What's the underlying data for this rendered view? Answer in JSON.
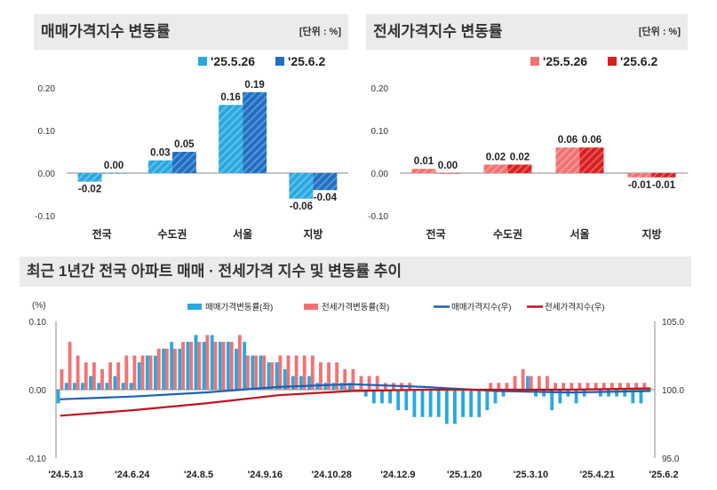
{
  "panels": {
    "sale": {
      "title": "매매가격지수 변동률",
      "unit": "[단위 : %]"
    },
    "jeonse": {
      "title": "전세가격지수 변동률",
      "unit": "[단위 : %]"
    },
    "trend": {
      "title": "최근 1년간 전국 아파트 매매 · 전세가격 지수 및 변동률 추이"
    }
  },
  "colors": {
    "sale_prev": "#29a8e0",
    "sale_curr": "#1f6fc2",
    "jeonse_prev": "#f27272",
    "jeonse_curr": "#d91f1f",
    "sale_index_line": "#1e5fb4",
    "jeonse_index_line": "#c0121c"
  },
  "chart_data": [
    {
      "type": "bar",
      "categories": [
        "전국",
        "수도권",
        "서울",
        "지방"
      ],
      "series": [
        {
          "name": "'25.5.26",
          "values": [
            -0.02,
            0.03,
            0.16,
            -0.06
          ],
          "labels": [
            "-0.02",
            "0.03",
            "0.16",
            "-0.06"
          ]
        },
        {
          "name": "'25.6.2",
          "values": [
            0.0,
            0.05,
            0.19,
            -0.04
          ],
          "labels": [
            "0.00",
            "0.05",
            "0.19",
            "-0.04"
          ]
        }
      ],
      "ylim": [
        -0.1,
        0.2
      ],
      "yticks": [
        "-0.10",
        "0.00",
        "0.10",
        "0.20"
      ],
      "legend": "top-right"
    },
    {
      "type": "bar",
      "categories": [
        "전국",
        "수도권",
        "서울",
        "지방"
      ],
      "series": [
        {
          "name": "'25.5.26",
          "values": [
            0.01,
            0.02,
            0.06,
            -0.01
          ],
          "labels": [
            "0.01",
            "0.02",
            "0.06",
            "-0.01"
          ]
        },
        {
          "name": "'25.6.2",
          "values": [
            0.0,
            0.02,
            0.06,
            -0.01
          ],
          "labels": [
            "0.00",
            "0.02",
            "0.06",
            "-0.01"
          ]
        }
      ],
      "ylim": [
        -0.1,
        0.2
      ],
      "yticks": [
        "-0.10",
        "0.00",
        "0.10",
        "0.20"
      ],
      "legend": "top-right"
    },
    {
      "type": "bar+line",
      "left_axis_label": "(%)",
      "yticks_left": [
        "-0.10",
        "0.00",
        "0.10"
      ],
      "ylim_left": [
        -0.1,
        0.1
      ],
      "yticks_right": [
        "95.0",
        "100.0",
        "105.0"
      ],
      "ylim_right": [
        95,
        105
      ],
      "xtick_labels": [
        "'24.5.13",
        "'24.6.24",
        "'24.8.5",
        "'24.9.16",
        "'24.10.28",
        "'24.12.9",
        "'25.1.20",
        "'25.3.10",
        "'25.4.21",
        "'25.6.2"
      ],
      "series": [
        {
          "name": "매매가격변동률(좌)",
          "kind": "bar",
          "values": [
            -0.02,
            0.01,
            0.01,
            0.01,
            0.02,
            0.01,
            0.01,
            0.02,
            0.01,
            0.01,
            0.04,
            0.05,
            0.05,
            0.06,
            0.07,
            0.06,
            0.07,
            0.08,
            0.07,
            0.08,
            0.07,
            0.07,
            0.06,
            0.07,
            0.05,
            0.05,
            0.04,
            0.04,
            0.03,
            0.02,
            0.02,
            0.02,
            0.01,
            0.01,
            0.01,
            0.01,
            0.01,
            0.0,
            -0.01,
            -0.02,
            -0.02,
            -0.02,
            -0.03,
            -0.03,
            -0.04,
            -0.04,
            -0.04,
            -0.04,
            -0.05,
            -0.05,
            -0.04,
            -0.04,
            -0.04,
            -0.03,
            -0.02,
            -0.01,
            0.0,
            0.0,
            0.02,
            -0.01,
            -0.01,
            -0.03,
            -0.02,
            -0.01,
            -0.02,
            -0.01,
            0.0,
            -0.01,
            -0.01,
            -0.01,
            -0.01,
            -0.02,
            -0.02,
            0.0
          ]
        },
        {
          "name": "전세가격변동률(좌)",
          "kind": "bar",
          "values": [
            0.03,
            0.07,
            0.05,
            0.04,
            0.04,
            0.03,
            0.04,
            0.04,
            0.05,
            0.05,
            0.05,
            0.05,
            0.06,
            0.06,
            0.06,
            0.07,
            0.07,
            0.07,
            0.08,
            0.07,
            0.07,
            0.07,
            0.08,
            0.05,
            0.05,
            0.05,
            0.04,
            0.05,
            0.05,
            0.05,
            0.05,
            0.05,
            0.04,
            0.04,
            0.04,
            0.03,
            0.03,
            0.02,
            0.02,
            0.02,
            0.01,
            0.01,
            0.01,
            0.01,
            0.0,
            0.0,
            0.0,
            0.0,
            0.0,
            0.0,
            0.0,
            0.0,
            0.0,
            0.01,
            0.01,
            0.01,
            0.02,
            0.03,
            0.02,
            0.02,
            0.02,
            0.01,
            0.01,
            0.01,
            0.01,
            0.01,
            0.01,
            0.01,
            0.01,
            0.01,
            0.01,
            0.01,
            0.01,
            0.0
          ]
        },
        {
          "name": "매매가격지수(우)",
          "kind": "line",
          "axis": "right",
          "points": [
            [
              0,
              99.3
            ],
            [
              9,
              99.5
            ],
            [
              18,
              99.8
            ],
            [
              27,
              100.2
            ],
            [
              36,
              100.4
            ],
            [
              45,
              100.2
            ],
            [
              54,
              99.9
            ],
            [
              63,
              99.8
            ],
            [
              73,
              99.9
            ]
          ]
        },
        {
          "name": "전세가격지수(우)",
          "kind": "line",
          "axis": "right",
          "points": [
            [
              0,
              98.1
            ],
            [
              9,
              98.5
            ],
            [
              18,
              99.0
            ],
            [
              27,
              99.6
            ],
            [
              36,
              99.9
            ],
            [
              45,
              100.0
            ],
            [
              54,
              100.0
            ],
            [
              63,
              100.0
            ],
            [
              73,
              100.1
            ]
          ]
        }
      ]
    }
  ]
}
